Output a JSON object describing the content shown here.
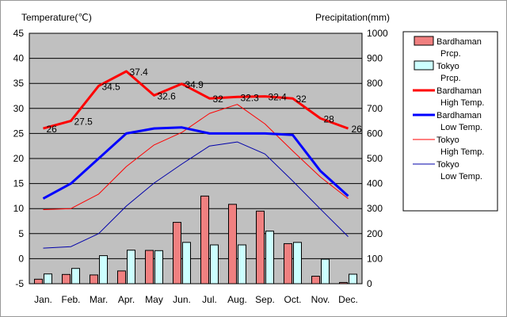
{
  "chart_data": {
    "type": "bar+line",
    "left_axis_title": "Temperature(℃)",
    "right_axis_title": "Precipitation(mm)",
    "temp_range": [
      -5,
      45
    ],
    "temp_ticks": [
      45,
      40,
      35,
      30,
      25,
      20,
      15,
      10,
      5,
      0,
      -5
    ],
    "precip_range": [
      0,
      1000
    ],
    "precip_ticks": [
      1000,
      900,
      800,
      700,
      600,
      500,
      400,
      300,
      200,
      100,
      0
    ],
    "grid": "horizontal",
    "legend_position": "right",
    "categories": [
      "Jan.",
      "Feb.",
      "Mar.",
      "Apr.",
      "May",
      "Jun.",
      "Jul.",
      "Aug.",
      "Sep.",
      "Oct.",
      "Nov.",
      "Dec."
    ],
    "bar_series": [
      {
        "legend": [
          "Bardhaman",
          "Prcp."
        ],
        "color": "#f08080",
        "values": [
          18,
          37,
          35,
          51,
          133,
          245,
          350,
          317,
          290,
          160,
          30,
          5
        ]
      },
      {
        "legend": [
          "Tokyo",
          "Prcp."
        ],
        "color": "#ccffff",
        "values": [
          39,
          61,
          112,
          134,
          132,
          165,
          155,
          155,
          210,
          165,
          98,
          38
        ]
      }
    ],
    "line_series": [
      {
        "legend": [
          "Bardhaman",
          "High Temp."
        ],
        "color": "#ff0000",
        "width": 3,
        "values": [
          26.0,
          27.5,
          34.5,
          37.4,
          32.6,
          34.9,
          32.0,
          32.3,
          32.4,
          32.0,
          28.0,
          26.0
        ],
        "labels": [
          "26",
          "27.5",
          "34.5",
          "37.4",
          "32.6",
          "34.9",
          "32",
          "32.3",
          "32.4",
          "32",
          "28",
          "26"
        ]
      },
      {
        "legend": [
          "Bardhaman",
          "Low Temp."
        ],
        "color": "#0000ff",
        "width": 3,
        "values": [
          12.0,
          15.0,
          20.0,
          25.0,
          26.0,
          26.2,
          25.0,
          25.0,
          25.0,
          24.7,
          17.5,
          12.5
        ]
      },
      {
        "legend": [
          "Tokyo",
          "High Temp."
        ],
        "color": "#ff0000",
        "width": 1,
        "values": [
          9.8,
          10.0,
          12.9,
          18.4,
          22.7,
          25.2,
          29.0,
          30.8,
          26.9,
          21.5,
          16.3,
          12.0
        ]
      },
      {
        "legend": [
          "Tokyo",
          "Low Temp."
        ],
        "color": "#0000aa",
        "width": 1,
        "values": [
          2.1,
          2.4,
          5.0,
          10.5,
          15.1,
          18.9,
          22.5,
          23.3,
          20.9,
          15.5,
          9.9,
          4.4
        ]
      }
    ]
  }
}
